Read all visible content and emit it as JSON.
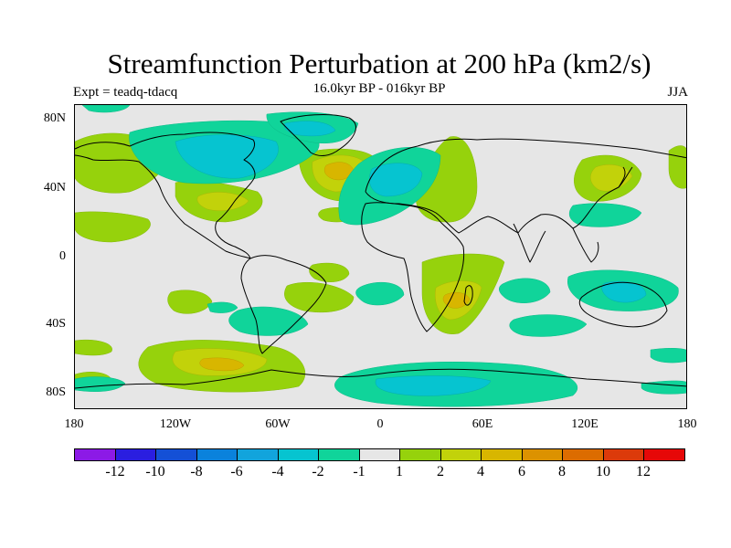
{
  "title": "Streamfunction Perturbation at 200 hPa (km2/s)",
  "subtitle": "16.0kyr BP - 016kyr BP",
  "left_label": "Expt = teadq-tdacq",
  "right_label": "JJA",
  "lat_labels": [
    "80N",
    "40N",
    "0",
    "40S",
    "80S"
  ],
  "lon_labels": [
    "180",
    "120W",
    "60W",
    "0",
    "60E",
    "120E",
    "180"
  ],
  "colorbar": {
    "labels": [
      "-12",
      "-10",
      "-8",
      "-6",
      "-4",
      "-2",
      "-1",
      "1",
      "2",
      "4",
      "6",
      "8",
      "10",
      "12"
    ],
    "colors": [
      "#8c1ae6",
      "#2a1ee0",
      "#1450d6",
      "#0a82dc",
      "#12a4dc",
      "#06c4d0",
      "#10d49a",
      "#e6e6e6",
      "#96d20c",
      "#c2d20a",
      "#d8b600",
      "#dc9200",
      "#dc6c00",
      "#dc3a0a",
      "#e60808"
    ]
  },
  "map": {
    "background": "#e6e6e6",
    "features": [
      {
        "name": "north-pacific-green",
        "color": "#96d20c"
      },
      {
        "name": "arctic-canada-cyan",
        "color": "#06c4d0"
      },
      {
        "name": "north-atlantic-yellow",
        "color": "#c2d20a"
      },
      {
        "name": "europe-cyan",
        "color": "#06c4d0"
      },
      {
        "name": "southern-ocean-cyan",
        "color": "#06c4d0"
      }
    ]
  }
}
